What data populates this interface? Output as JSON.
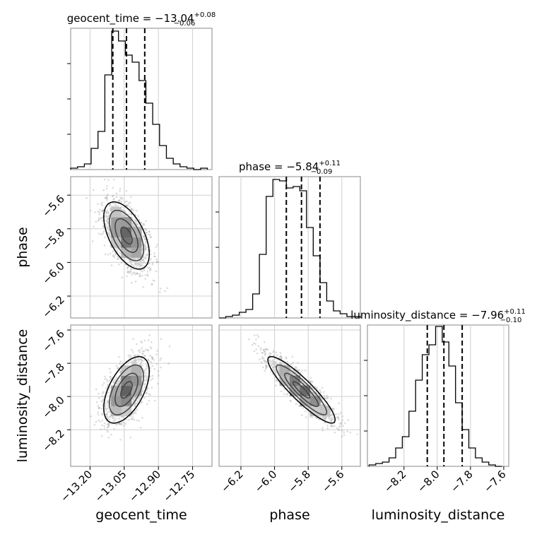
{
  "chart_data": {
    "type": "corner",
    "parameters": [
      "geocent_time",
      "phase",
      "luminosity_distance"
    ],
    "grid": true,
    "axis_labels": {
      "x": [
        "geocent_time",
        "phase",
        "luminosity_distance"
      ],
      "y": [
        "phase",
        "luminosity_distance"
      ]
    },
    "ranges": {
      "geocent_time": [
        -13.285,
        -12.665
      ],
      "phase": [
        -6.33,
        -5.49
      ],
      "luminosity_distance": [
        -8.42,
        -7.57
      ]
    },
    "ticks": {
      "geocent_time": {
        "values": [
          -13.2,
          -13.05,
          -12.9,
          -12.75
        ],
        "labels": [
          "−13.20",
          "−13.05",
          "−12.90",
          "−12.75"
        ]
      },
      "phase_x": {
        "values": [
          -6.2,
          -6.0,
          -5.8,
          -5.6
        ],
        "labels": [
          "−6.2",
          "−6.0",
          "−5.8",
          "−5.6"
        ]
      },
      "phase_y": {
        "values": [
          -5.6,
          -5.8,
          -6.0,
          -6.2
        ],
        "labels": [
          "−5.6",
          "−5.8",
          "−6.0",
          "−6.2"
        ]
      },
      "luminosity_distance_x": {
        "values": [
          -8.2,
          -8.0,
          -7.8,
          -7.6
        ],
        "labels": [
          "−8.2",
          "−8.0",
          "−7.8",
          "−7.6"
        ]
      },
      "luminosity_distance_y": {
        "values": [
          -7.6,
          -7.8,
          -8.0,
          -8.2
        ],
        "labels": [
          "−7.6",
          "−7.8",
          "−8.0",
          "−8.2"
        ]
      }
    },
    "titles": [
      {
        "param": "geocent_time",
        "prefix": "geocent_time = −13.04",
        "plus": "+0.08",
        "minus": "−0.06"
      },
      {
        "param": "phase",
        "prefix": "phase = −5.84",
        "plus": "+0.11",
        "minus": "−0.09"
      },
      {
        "param": "luminosity_distance",
        "prefix": "luminosity_distance = −7.96",
        "plus": "+0.11",
        "minus": "−0.10"
      }
    ],
    "quantiles": {
      "geocent_time": [
        -13.1,
        -13.04,
        -12.96
      ],
      "phase": [
        -5.93,
        -5.84,
        -5.73
      ],
      "luminosity_distance": [
        -8.06,
        -7.96,
        -7.85
      ]
    },
    "histograms": {
      "geocent_time": {
        "edges": [
          -13.285,
          -13.255,
          -13.225,
          -13.195,
          -13.165,
          -13.135,
          -13.105,
          -13.075,
          -13.045,
          -13.015,
          -12.985,
          -12.955,
          -12.925,
          -12.895,
          -12.865,
          -12.835,
          -12.805,
          -12.775,
          -12.745,
          -12.715,
          -12.685
        ],
        "counts": [
          0.01,
          0.02,
          0.04,
          0.15,
          0.27,
          0.67,
          0.98,
          0.91,
          0.81,
          0.76,
          0.63,
          0.47,
          0.32,
          0.17,
          0.08,
          0.04,
          0.02,
          0.01,
          0.0,
          0.01
        ]
      },
      "phase": {
        "edges": [
          -6.33,
          -6.29,
          -6.25,
          -6.21,
          -6.17,
          -6.13,
          -6.09,
          -6.05,
          -6.01,
          -5.97,
          -5.93,
          -5.89,
          -5.85,
          -5.81,
          -5.77,
          -5.73,
          -5.69,
          -5.65,
          -5.61,
          -5.57,
          -5.53,
          -5.49
        ],
        "counts": [
          0.0,
          0.01,
          0.02,
          0.04,
          0.06,
          0.17,
          0.45,
          0.86,
          0.98,
          0.97,
          0.92,
          0.93,
          0.9,
          0.64,
          0.44,
          0.25,
          0.12,
          0.05,
          0.03,
          0.01,
          0.01
        ]
      },
      "luminosity_distance": {
        "edges": [
          -8.41,
          -8.37,
          -8.33,
          -8.29,
          -8.25,
          -8.21,
          -8.17,
          -8.13,
          -8.09,
          -8.05,
          -8.01,
          -7.97,
          -7.93,
          -7.89,
          -7.85,
          -7.81,
          -7.77,
          -7.73,
          -7.69,
          -7.65,
          -7.61
        ],
        "counts": [
          0.01,
          0.02,
          0.03,
          0.06,
          0.13,
          0.21,
          0.39,
          0.61,
          0.79,
          0.86,
          0.99,
          0.88,
          0.71,
          0.45,
          0.26,
          0.13,
          0.06,
          0.03,
          0.01,
          0.0
        ]
      }
    },
    "joint_2d": [
      {
        "x": "geocent_time",
        "y": "phase",
        "mean": [
          -13.04,
          -5.84
        ],
        "sd": [
          0.05,
          0.1
        ],
        "corr": -0.55
      },
      {
        "x": "geocent_time",
        "y": "luminosity_distance",
        "mean": [
          -13.04,
          -7.96
        ],
        "sd": [
          0.05,
          0.1
        ],
        "corr": 0.55
      },
      {
        "x": "phase",
        "y": "luminosity_distance",
        "mean": [
          -5.84,
          -7.96
        ],
        "sd": [
          0.1,
          0.1
        ],
        "corr": -0.9
      }
    ]
  }
}
